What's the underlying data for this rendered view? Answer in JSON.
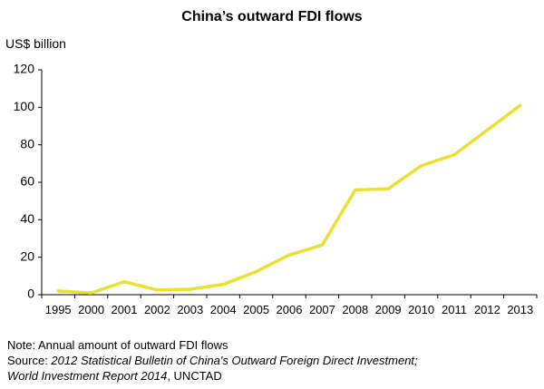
{
  "chart_data": {
    "type": "line",
    "title": "China’s outward FDI flows",
    "ylabel": "US$ billion",
    "ylim": [
      0,
      120
    ],
    "yticks": [
      0,
      20,
      40,
      60,
      80,
      100,
      120
    ],
    "categories": [
      "1995",
      "2000",
      "2001",
      "2002",
      "2003",
      "2004",
      "2005",
      "2006",
      "2007",
      "2008",
      "2009",
      "2010",
      "2011",
      "2012",
      "2013"
    ],
    "series": [
      {
        "values": [
          2.0,
          0.9,
          6.9,
          2.5,
          2.9,
          5.5,
          12.3,
          21.2,
          26.5,
          55.9,
          56.5,
          68.8,
          74.7,
          87.8,
          101.0
        ]
      }
    ],
    "grid": false,
    "line_color": "#E8E032"
  },
  "notes": {
    "note": "Note: Annual amount of outward FDI flows",
    "source_prefix": "Source: ",
    "source_italic_1": "2012 Statistical Bulletin of China's Outward Foreign Direct Investment;",
    "source_italic_2": "World Investment Report 2014",
    "source_suffix": ", UNCTAD"
  }
}
